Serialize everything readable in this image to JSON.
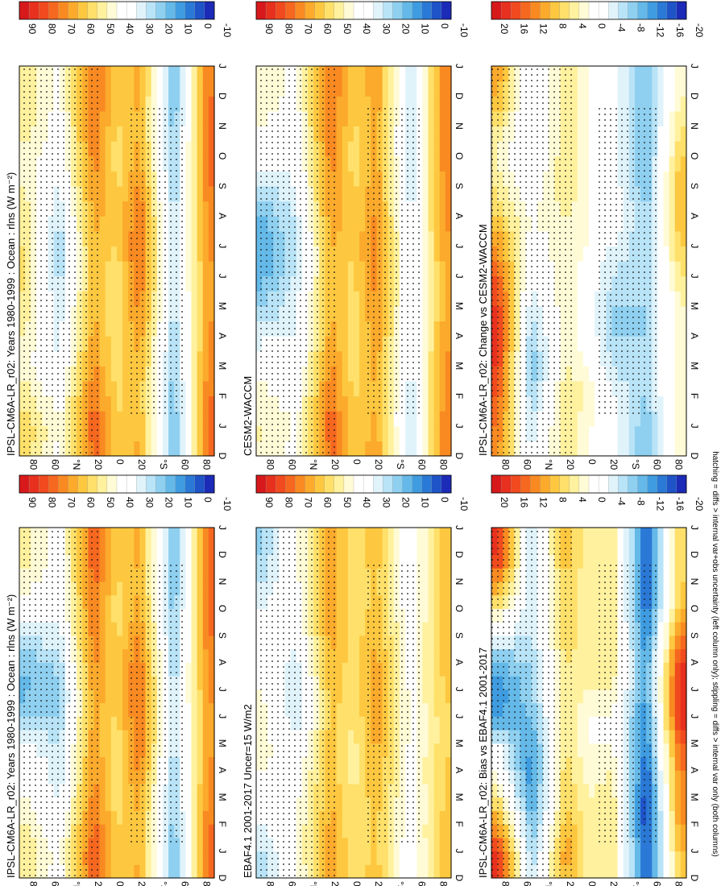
{
  "figure": {
    "footnote": "hatching = diffs > internal var+obs uncertainty (left column only); stippling = diffs > internal var only (both columns)"
  },
  "labels": {
    "months": [
      "D",
      "J",
      "F",
      "M",
      "A",
      "M",
      "J",
      "J",
      "A",
      "S",
      "O",
      "N",
      "D",
      "J"
    ],
    "lat_ticks": [
      "80",
      "60",
      "°N",
      "20",
      "0",
      "20",
      "°S",
      "60",
      "80"
    ]
  },
  "colorbars": {
    "abs": {
      "labels": [
        "90",
        "80",
        "70",
        "60",
        "50",
        "40",
        "30",
        "20",
        "10",
        "0",
        "-10"
      ],
      "colors": [
        "#d7191c",
        "#e8301e",
        "#f04a1e",
        "#f6671f",
        "#f98a22",
        "#fbaa2c",
        "#fdc840",
        "#fee06a",
        "#fff19e",
        "#fffbd6",
        "#ffffff",
        "#ffffff",
        "#e0f3fb",
        "#b9e3f6",
        "#8fd0f0",
        "#64b9e8",
        "#3f9ce0",
        "#2a79d6",
        "#1f53c8",
        "#1c2ab8"
      ]
    },
    "diff": {
      "labels": [
        "20",
        "16",
        "12",
        "8",
        "4",
        "0",
        "-4",
        "-8",
        "-12",
        "-16",
        "-20"
      ],
      "colors": [
        "#d7191c",
        "#e8301e",
        "#f04a1e",
        "#f6671f",
        "#f98a22",
        "#fbaa2c",
        "#fdc840",
        "#fee06a",
        "#fff19e",
        "#fffbd6",
        "#ffffff",
        "#ffffff",
        "#e0f3fb",
        "#b9e3f6",
        "#8fd0f0",
        "#64b9e8",
        "#3f9ce0",
        "#2a79d6",
        "#1f53c8",
        "#1c2ab8"
      ]
    }
  },
  "chart_data": [
    {
      "type": "heatmap",
      "title": "IPSL-CM6A-LR_r02: Years 1980-1999 : Ocean : rlns (W m⁻²)",
      "x": "month (D to J)",
      "y": "latitude (80°S to 80°N)",
      "colorbar": "abs",
      "zlim": [
        -10,
        90
      ],
      "pattern": [
        {
          "lat": 80,
          "values": [
            50,
            55,
            48,
            42,
            45,
            48,
            52,
            50,
            48,
            45,
            44,
            48,
            50,
            50
          ]
        },
        {
          "lat": 50,
          "values": [
            38,
            40,
            36,
            30,
            28,
            26,
            22,
            20,
            24,
            30,
            34,
            36,
            38,
            38
          ]
        },
        {
          "lat": 20,
          "values": [
            72,
            74,
            70,
            66,
            62,
            60,
            58,
            60,
            62,
            66,
            68,
            70,
            72,
            72
          ]
        },
        {
          "lat": 0,
          "values": [
            55,
            56,
            54,
            52,
            50,
            50,
            52,
            55,
            56,
            54,
            52,
            54,
            55,
            55
          ]
        },
        {
          "lat": -20,
          "values": [
            62,
            60,
            58,
            60,
            64,
            68,
            70,
            72,
            70,
            66,
            62,
            60,
            62,
            62
          ]
        },
        {
          "lat": -50,
          "values": [
            15,
            14,
            16,
            18,
            20,
            22,
            24,
            24,
            22,
            20,
            18,
            16,
            15,
            15
          ]
        },
        {
          "lat": -80,
          "values": [
            70,
            72,
            70,
            68,
            66,
            64,
            64,
            66,
            68,
            70,
            72,
            72,
            70,
            70
          ]
        }
      ]
    },
    {
      "type": "heatmap",
      "title": "IPSL-CM6A-LR_r02: Years 1980-1999 : Ocean : rlns (W m⁻²)",
      "x": "month (D to J)",
      "y": "latitude (80°S to 80°N)",
      "colorbar": "abs",
      "zlim": [
        -10,
        90
      ],
      "pattern": [
        {
          "lat": 80,
          "values": [
            48,
            50,
            45,
            40,
            38,
            32,
            18,
            14,
            16,
            26,
            36,
            44,
            48,
            48
          ]
        },
        {
          "lat": 50,
          "values": [
            36,
            38,
            34,
            28,
            26,
            24,
            20,
            18,
            22,
            28,
            32,
            34,
            36,
            36
          ]
        },
        {
          "lat": 20,
          "values": [
            74,
            75,
            72,
            68,
            66,
            64,
            62,
            64,
            66,
            68,
            70,
            72,
            74,
            74
          ]
        },
        {
          "lat": 0,
          "values": [
            55,
            56,
            54,
            52,
            52,
            52,
            54,
            56,
            56,
            54,
            52,
            54,
            55,
            55
          ]
        },
        {
          "lat": -20,
          "values": [
            62,
            60,
            60,
            62,
            66,
            70,
            72,
            72,
            70,
            66,
            62,
            60,
            62,
            62
          ]
        },
        {
          "lat": -50,
          "values": [
            14,
            15,
            16,
            18,
            20,
            22,
            22,
            22,
            20,
            18,
            16,
            15,
            14,
            14
          ]
        },
        {
          "lat": -80,
          "values": [
            72,
            72,
            70,
            68,
            66,
            64,
            64,
            66,
            68,
            70,
            72,
            72,
            72,
            72
          ]
        }
      ]
    },
    {
      "type": "heatmap",
      "title": "EBAF4.1 2001-2017 Uncer=15 W/m2",
      "x": "month (D to J)",
      "y": "latitude (80°S to 80°N)",
      "colorbar": "abs",
      "zlim": [
        -10,
        90
      ],
      "pattern": [
        {
          "lat": 80,
          "values": [
            20,
            24,
            30,
            36,
            40,
            44,
            42,
            40,
            38,
            34,
            30,
            24,
            20,
            20
          ]
        },
        {
          "lat": 50,
          "values": [
            38,
            40,
            40,
            38,
            36,
            30,
            26,
            24,
            28,
            32,
            36,
            38,
            38,
            38
          ]
        },
        {
          "lat": 20,
          "values": [
            64,
            64,
            62,
            60,
            58,
            58,
            56,
            58,
            60,
            62,
            64,
            64,
            64,
            64
          ]
        },
        {
          "lat": 0,
          "values": [
            52,
            52,
            50,
            50,
            48,
            48,
            50,
            52,
            52,
            52,
            50,
            52,
            52,
            52
          ]
        },
        {
          "lat": -20,
          "values": [
            58,
            56,
            56,
            58,
            60,
            62,
            64,
            64,
            62,
            60,
            58,
            56,
            58,
            58
          ]
        },
        {
          "lat": -50,
          "values": [
            34,
            34,
            36,
            36,
            38,
            38,
            38,
            38,
            36,
            36,
            34,
            34,
            34,
            34
          ]
        },
        {
          "lat": -80,
          "values": [
            60,
            60,
            58,
            56,
            56,
            54,
            54,
            56,
            58,
            58,
            60,
            60,
            60,
            60
          ]
        }
      ]
    },
    {
      "type": "heatmap",
      "title": "CESM2-WACCM",
      "x": "month (D to J)",
      "y": "latitude (80°S to 80°N)",
      "colorbar": "abs",
      "zlim": [
        -10,
        90
      ],
      "pattern": [
        {
          "lat": 80,
          "values": [
            44,
            46,
            42,
            36,
            28,
            20,
            12,
            10,
            14,
            24,
            34,
            40,
            44,
            44
          ]
        },
        {
          "lat": 50,
          "values": [
            38,
            40,
            36,
            32,
            30,
            28,
            26,
            24,
            26,
            30,
            34,
            36,
            38,
            38
          ]
        },
        {
          "lat": 20,
          "values": [
            72,
            74,
            70,
            66,
            62,
            60,
            58,
            60,
            64,
            66,
            68,
            70,
            72,
            72
          ]
        },
        {
          "lat": 0,
          "values": [
            54,
            55,
            54,
            52,
            52,
            52,
            54,
            56,
            56,
            54,
            52,
            54,
            54,
            54
          ]
        },
        {
          "lat": -20,
          "values": [
            64,
            62,
            60,
            62,
            64,
            66,
            68,
            68,
            66,
            64,
            62,
            62,
            64,
            64
          ]
        },
        {
          "lat": -50,
          "values": [
            24,
            24,
            26,
            28,
            30,
            30,
            30,
            30,
            28,
            26,
            24,
            24,
            24,
            24
          ]
        },
        {
          "lat": -80,
          "values": [
            70,
            70,
            68,
            66,
            64,
            62,
            62,
            64,
            66,
            68,
            70,
            70,
            70,
            70
          ]
        }
      ]
    },
    {
      "type": "heatmap",
      "title": "IPSL-CM6A-LR_r02: Bias vs EBAF4.1 2001-2017",
      "x": "month (D to J)",
      "y": "latitude (80°S to 80°N)",
      "colorbar": "diff",
      "zlim": [
        -20,
        20
      ],
      "pattern": [
        {
          "lat": 80,
          "values": [
            18,
            16,
            10,
            4,
            0,
            -4,
            -12,
            -14,
            -10,
            -4,
            4,
            10,
            18,
            18
          ]
        },
        {
          "lat": 50,
          "values": [
            -6,
            -8,
            -10,
            -12,
            -14,
            -12,
            -10,
            -8,
            -8,
            -6,
            -6,
            -6,
            -6,
            -6
          ]
        },
        {
          "lat": 20,
          "values": [
            8,
            10,
            8,
            6,
            6,
            4,
            4,
            4,
            4,
            6,
            6,
            6,
            8,
            8
          ]
        },
        {
          "lat": 0,
          "values": [
            2,
            2,
            2,
            2,
            0,
            0,
            0,
            2,
            2,
            2,
            2,
            2,
            2,
            2
          ]
        },
        {
          "lat": -20,
          "values": [
            4,
            4,
            4,
            4,
            2,
            0,
            0,
            2,
            4,
            4,
            4,
            4,
            4,
            4
          ]
        },
        {
          "lat": -50,
          "values": [
            -16,
            -16,
            -18,
            -18,
            -16,
            -14,
            -14,
            -12,
            -12,
            -14,
            -16,
            -16,
            -16,
            -16
          ]
        },
        {
          "lat": -80,
          "values": [
            6,
            8,
            10,
            12,
            12,
            14,
            18,
            18,
            16,
            12,
            8,
            6,
            6,
            6
          ]
        }
      ]
    },
    {
      "type": "heatmap",
      "title": "IPSL-CM6A-LR_r02: Change vs CESM2-WACCM",
      "x": "month (D to J)",
      "y": "latitude (80°S to 80°N)",
      "colorbar": "diff",
      "zlim": [
        -20,
        20
      ],
      "pattern": [
        {
          "lat": 80,
          "values": [
            10,
            12,
            14,
            16,
            18,
            16,
            14,
            10,
            6,
            4,
            2,
            4,
            8,
            10
          ]
        },
        {
          "lat": 50,
          "values": [
            -4,
            -6,
            -8,
            -10,
            -8,
            -6,
            -4,
            -2,
            0,
            -2,
            -4,
            -4,
            -4,
            -4
          ]
        },
        {
          "lat": 20,
          "values": [
            4,
            4,
            4,
            2,
            2,
            2,
            2,
            2,
            2,
            4,
            4,
            4,
            4,
            4
          ]
        },
        {
          "lat": 0,
          "values": [
            0,
            0,
            2,
            0,
            -2,
            -2,
            -2,
            0,
            0,
            0,
            0,
            0,
            0,
            0
          ]
        },
        {
          "lat": -20,
          "values": [
            -2,
            -2,
            -4,
            -6,
            -8,
            -8,
            -6,
            -4,
            -2,
            -2,
            -2,
            -2,
            -2,
            -2
          ]
        },
        {
          "lat": -50,
          "values": [
            -10,
            -10,
            -8,
            -8,
            -8,
            -8,
            -8,
            -8,
            -8,
            -10,
            -10,
            -10,
            -10,
            -10
          ]
        },
        {
          "lat": -80,
          "values": [
            2,
            2,
            2,
            2,
            2,
            2,
            4,
            6,
            8,
            8,
            6,
            4,
            2,
            2
          ]
        }
      ]
    }
  ]
}
